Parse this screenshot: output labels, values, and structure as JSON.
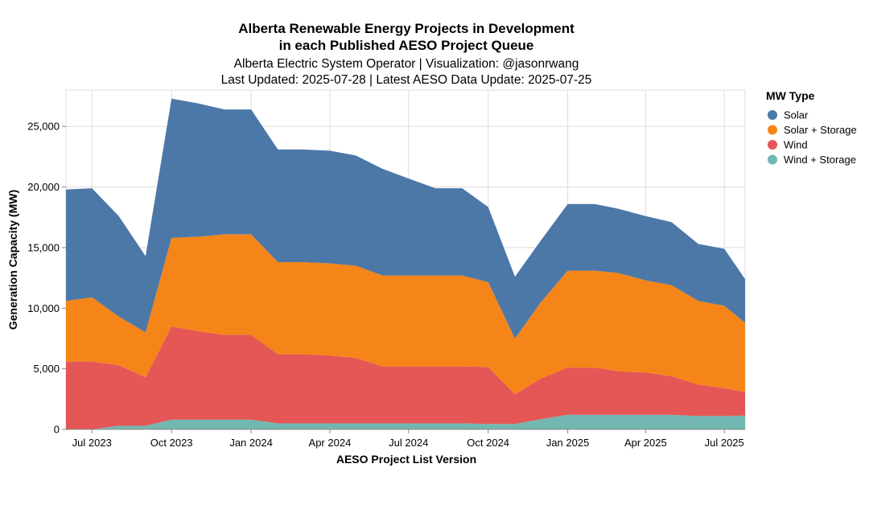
{
  "chart_data": {
    "type": "area",
    "stacked": true,
    "title": [
      "Alberta Renewable Energy Projects in Development",
      "in each Published AESO Project Queue"
    ],
    "subtitle": [
      "Alberta Electric System Operator | Visualization: @jasonrwang",
      "Last Updated: 2025-07-28 | Latest AESO Data Update: 2025-07-25"
    ],
    "xlabel": "AESO Project List Version",
    "ylabel": "Generation Capacity (MW)",
    "xrange": [
      "2023-06-01",
      "2025-07-25"
    ],
    "ylim": [
      0,
      28000
    ],
    "y_ticks": [
      0,
      5000,
      10000,
      15000,
      20000,
      25000
    ],
    "y_tick_labels": [
      "0",
      "5,000",
      "10,000",
      "15,000",
      "20,000",
      "25,000"
    ],
    "x_ticks": [
      "2023-07-01",
      "2023-10-01",
      "2024-01-01",
      "2024-04-01",
      "2024-07-01",
      "2024-10-01",
      "2025-01-01",
      "2025-04-01",
      "2025-07-01"
    ],
    "x_tick_labels": [
      "Jul 2023",
      "Oct 2023",
      "Jan 2024",
      "Apr 2024",
      "Jul 2024",
      "Oct 2024",
      "Jan 2025",
      "Apr 2025",
      "Jul 2025"
    ],
    "grid": true,
    "legend_title": "MW Type",
    "legend_position": "right",
    "x": [
      "2023-06-01",
      "2023-07-01",
      "2023-08-01",
      "2023-09-01",
      "2023-10-01",
      "2023-11-01",
      "2023-12-01",
      "2024-01-01",
      "2024-02-01",
      "2024-03-01",
      "2024-04-01",
      "2024-05-01",
      "2024-06-01",
      "2024-07-01",
      "2024-08-01",
      "2024-09-01",
      "2024-10-01",
      "2024-11-01",
      "2024-12-01",
      "2025-01-01",
      "2025-02-01",
      "2025-03-01",
      "2025-04-01",
      "2025-05-01",
      "2025-06-01",
      "2025-07-01",
      "2025-07-25"
    ],
    "series": [
      {
        "name": "Wind + Storage",
        "color": "#72b7b2",
        "values": [
          0,
          0,
          300,
          300,
          800,
          800,
          800,
          800,
          500,
          500,
          500,
          500,
          500,
          500,
          500,
          500,
          450,
          450,
          850,
          1200,
          1200,
          1200,
          1200,
          1200,
          1100,
          1100,
          1150
        ]
      },
      {
        "name": "Wind",
        "color": "#e45756",
        "values": [
          5600,
          5600,
          5000,
          4000,
          7700,
          7300,
          7000,
          7000,
          5700,
          5700,
          5600,
          5400,
          4700,
          4700,
          4700,
          4700,
          4700,
          2450,
          3350,
          3900,
          3900,
          3600,
          3500,
          3200,
          2600,
          2300,
          1950
        ]
      },
      {
        "name": "Solar + Storage",
        "color": "#f58518",
        "values": [
          5000,
          5300,
          4000,
          3700,
          7300,
          7800,
          8300,
          8300,
          7600,
          7600,
          7600,
          7600,
          7500,
          7500,
          7500,
          7500,
          7000,
          4600,
          6300,
          8000,
          8000,
          8100,
          7600,
          7500,
          6900,
          6800,
          5700
        ]
      },
      {
        "name": "Solar",
        "color": "#4c78a8",
        "values": [
          9200,
          9000,
          8300,
          6300,
          11500,
          11000,
          10300,
          10300,
          9300,
          9300,
          9300,
          9100,
          8800,
          8000,
          7200,
          7200,
          6200,
          5100,
          5100,
          5500,
          5500,
          5300,
          5300,
          5200,
          4700,
          4700,
          3600
        ]
      }
    ]
  }
}
